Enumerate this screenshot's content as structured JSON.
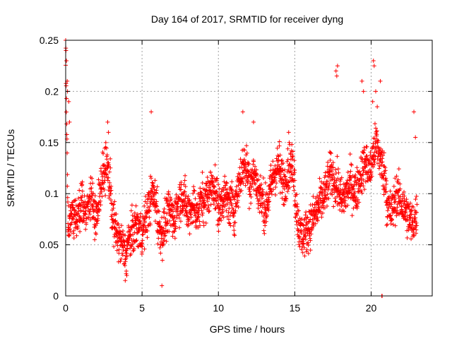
{
  "chart_data": {
    "type": "scatter",
    "title": "Day 164 of 2017, SRMTID for receiver dyng",
    "xlabel": "GPS time / hours",
    "ylabel": "SRMTID / TECUs",
    "xlim": [
      0,
      24
    ],
    "ylim": [
      0,
      0.25
    ],
    "grid": true,
    "marker": "+",
    "color": "#ff0000",
    "xticks": [
      0,
      5,
      10,
      15,
      20
    ],
    "xtick_labels": [
      "0",
      "5",
      "10",
      "15",
      "20"
    ],
    "yticks": [
      0,
      0.05,
      0.1,
      0.15,
      0.2,
      0.25
    ],
    "ytick_labels": [
      "0",
      "0.05",
      "0.1",
      "0.15",
      "0.2",
      "0.25"
    ],
    "series": [
      {
        "name": "SRMTID",
        "segments": [
          {
            "t": [
              0.0,
              0.15
            ],
            "values": [
              0.24,
              0.2,
              0.16,
              0.12,
              0.07
            ]
          },
          {
            "t": [
              0.15,
              1.0
            ],
            "values": [
              0.06,
              0.08,
              0.07,
              0.09
            ]
          },
          {
            "t": [
              1.0,
              2.0
            ],
            "values": [
              0.09,
              0.08,
              0.1,
              0.07
            ]
          },
          {
            "t": [
              2.0,
              3.0
            ],
            "values": [
              0.08,
              0.11,
              0.13,
              0.1
            ]
          },
          {
            "t": [
              3.0,
              4.0
            ],
            "values": [
              0.08,
              0.06,
              0.05,
              0.04
            ]
          },
          {
            "t": [
              4.0,
              5.0
            ],
            "values": [
              0.05,
              0.06,
              0.07,
              0.06
            ]
          },
          {
            "t": [
              5.0,
              6.0
            ],
            "values": [
              0.06,
              0.08,
              0.1,
              0.09
            ]
          },
          {
            "t": [
              6.0,
              7.0
            ],
            "values": [
              0.07,
              0.06,
              0.08,
              0.08
            ]
          },
          {
            "t": [
              7.0,
              8.0
            ],
            "values": [
              0.07,
              0.09,
              0.1,
              0.08
            ]
          },
          {
            "t": [
              8.0,
              9.0
            ],
            "values": [
              0.08,
              0.09,
              0.08,
              0.1
            ]
          },
          {
            "t": [
              9.0,
              10.0
            ],
            "values": [
              0.09,
              0.1,
              0.11,
              0.09
            ]
          },
          {
            "t": [
              10.0,
              11.0
            ],
            "values": [
              0.08,
              0.1,
              0.09,
              0.09
            ]
          },
          {
            "t": [
              11.0,
              12.0
            ],
            "values": [
              0.08,
              0.11,
              0.13,
              0.12
            ]
          },
          {
            "t": [
              12.0,
              13.0
            ],
            "values": [
              0.11,
              0.12,
              0.1,
              0.09
            ]
          },
          {
            "t": [
              13.0,
              14.0
            ],
            "values": [
              0.08,
              0.1,
              0.12,
              0.13
            ]
          },
          {
            "t": [
              14.0,
              15.0
            ],
            "values": [
              0.12,
              0.11,
              0.13,
              0.12
            ]
          },
          {
            "t": [
              15.0,
              16.0
            ],
            "values": [
              0.1,
              0.06,
              0.06,
              0.07
            ]
          },
          {
            "t": [
              16.0,
              17.0
            ],
            "values": [
              0.07,
              0.08,
              0.09,
              0.1
            ]
          },
          {
            "t": [
              17.0,
              18.0
            ],
            "values": [
              0.1,
              0.12,
              0.11,
              0.1
            ]
          },
          {
            "t": [
              18.0,
              19.0
            ],
            "values": [
              0.09,
              0.1,
              0.11,
              0.1
            ]
          },
          {
            "t": [
              19.0,
              20.0
            ],
            "values": [
              0.1,
              0.12,
              0.13,
              0.12
            ]
          },
          {
            "t": [
              20.0,
              21.0
            ],
            "values": [
              0.13,
              0.15,
              0.13,
              0.11
            ]
          },
          {
            "t": [
              21.0,
              22.0
            ],
            "values": [
              0.09,
              0.08,
              0.1,
              0.09
            ]
          },
          {
            "t": [
              22.0,
              23.0
            ],
            "values": [
              0.09,
              0.08,
              0.07,
              0.08
            ]
          }
        ],
        "spread": 0.03,
        "samples_per_hour": 100,
        "outliers": [
          {
            "x": 0.0,
            "y": 0.25
          },
          {
            "x": 0.02,
            "y": 0.24
          },
          {
            "x": 0.05,
            "y": 0.23
          },
          {
            "x": 0.1,
            "y": 0.21
          },
          {
            "x": 0.12,
            "y": 0.2
          },
          {
            "x": 0.2,
            "y": 0.19
          },
          {
            "x": 0.25,
            "y": 0.17
          },
          {
            "x": 2.75,
            "y": 0.17
          },
          {
            "x": 2.8,
            "y": 0.16
          },
          {
            "x": 5.6,
            "y": 0.18
          },
          {
            "x": 11.6,
            "y": 0.18
          },
          {
            "x": 12.3,
            "y": 0.17
          },
          {
            "x": 14.6,
            "y": 0.16
          },
          {
            "x": 17.7,
            "y": 0.22
          },
          {
            "x": 17.8,
            "y": 0.225
          },
          {
            "x": 17.75,
            "y": 0.215
          },
          {
            "x": 19.4,
            "y": 0.21
          },
          {
            "x": 19.5,
            "y": 0.2
          },
          {
            "x": 20.15,
            "y": 0.23
          },
          {
            "x": 20.2,
            "y": 0.225
          },
          {
            "x": 20.3,
            "y": 0.2
          },
          {
            "x": 20.1,
            "y": 0.19
          },
          {
            "x": 20.4,
            "y": 0.185
          },
          {
            "x": 20.6,
            "y": 0.21
          },
          {
            "x": 20.7,
            "y": 0.0
          },
          {
            "x": 20.72,
            "y": 0.0
          },
          {
            "x": 22.8,
            "y": 0.18
          },
          {
            "x": 22.9,
            "y": 0.155
          },
          {
            "x": 6.3,
            "y": 0.01
          },
          {
            "x": 3.9,
            "y": 0.015
          },
          {
            "x": 4.0,
            "y": 0.02
          }
        ]
      }
    ]
  }
}
